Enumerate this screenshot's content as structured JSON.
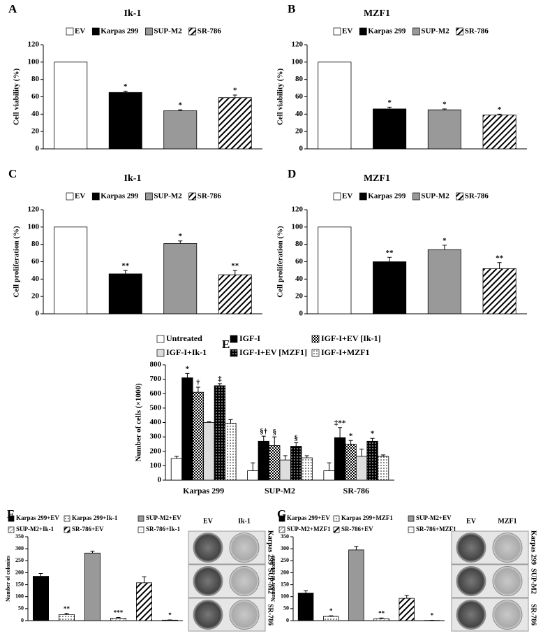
{
  "chart_data": [
    {
      "type": "bar",
      "panel": "A",
      "title": "Ik-1",
      "ylabel": "Cell viability (%)",
      "categories": [
        "EV",
        "Karpas 299",
        "SUP-M2",
        "SR-786"
      ],
      "fills": [
        "white",
        "black",
        "gray",
        "hatch"
      ],
      "values": [
        100,
        65,
        44,
        59
      ],
      "errors": [
        null,
        1.5,
        1,
        3
      ],
      "annotations": [
        null,
        "*",
        "*",
        "*"
      ],
      "ylim": [
        0,
        120
      ],
      "yticks": [
        0,
        20,
        40,
        60,
        80,
        100,
        120
      ]
    },
    {
      "type": "bar",
      "panel": "B",
      "title": "MZF1",
      "ylabel": "Cell viability (%)",
      "categories": [
        "EV",
        "Karpas 299",
        "SUP-M2",
        "SR-786"
      ],
      "fills": [
        "white",
        "black",
        "gray",
        "hatch"
      ],
      "values": [
        100,
        46,
        45,
        39
      ],
      "errors": [
        null,
        2,
        1,
        1
      ],
      "annotations": [
        null,
        "*",
        "*",
        "*"
      ],
      "ylim": [
        0,
        120
      ],
      "yticks": [
        0,
        20,
        40,
        60,
        80,
        100,
        120
      ]
    },
    {
      "type": "bar",
      "panel": "C",
      "title": "Ik-1",
      "ylabel": "Cell proliferation (%)",
      "categories": [
        "EV",
        "Karpas 299",
        "SUP-M2",
        "SR-786"
      ],
      "fills": [
        "white",
        "black",
        "gray",
        "hatch"
      ],
      "values": [
        100,
        46,
        81,
        45
      ],
      "errors": [
        null,
        4,
        3,
        5
      ],
      "annotations": [
        null,
        "**",
        "*",
        "**"
      ],
      "ylim": [
        0,
        120
      ],
      "yticks": [
        0,
        20,
        40,
        60,
        80,
        100,
        120
      ]
    },
    {
      "type": "bar",
      "panel": "D",
      "title": "MZF1",
      "ylabel": "Cell proliferation (%)",
      "categories": [
        "EV",
        "Karpas 299",
        "SUP-M2",
        "SR-786"
      ],
      "fills": [
        "white",
        "black",
        "gray",
        "hatch"
      ],
      "values": [
        100,
        60,
        74,
        52
      ],
      "errors": [
        null,
        5,
        5,
        7
      ],
      "annotations": [
        null,
        "**",
        "*",
        "**"
      ],
      "ylim": [
        0,
        120
      ],
      "yticks": [
        0,
        20,
        40,
        60,
        80,
        100,
        120
      ]
    },
    {
      "type": "grouped-bar",
      "panel": "E",
      "ylabel": "Number of cells (×1000)",
      "categories": [
        "Karpas 299",
        "SUP-M2",
        "SR-786"
      ],
      "series": [
        {
          "name": "Untreated",
          "fill": "white",
          "values": [
            150,
            65,
            65
          ],
          "errors": [
            15,
            55,
            55
          ],
          "annotations": [
            null,
            null,
            null
          ]
        },
        {
          "name": "IGF-I",
          "fill": "black",
          "values": [
            710,
            270,
            295
          ],
          "errors": [
            30,
            35,
            70
          ],
          "annotations": [
            "*",
            "§†",
            "‡**"
          ]
        },
        {
          "name": "IGF-I+EV [Ik-1]",
          "fill": "checker",
          "values": [
            610,
            240,
            250
          ],
          "errors": [
            35,
            60,
            25
          ],
          "annotations": [
            "†",
            "§",
            "*"
          ]
        },
        {
          "name": "IGF-I+Ik-1",
          "fill": "lightgray",
          "values": [
            400,
            140,
            165
          ],
          "errors": [
            5,
            30,
            50
          ],
          "annotations": [
            null,
            null,
            null
          ]
        },
        {
          "name": "IGF-I+EV [MZF1]",
          "fill": "blackdots",
          "values": [
            655,
            235,
            270
          ],
          "errors": [
            15,
            25,
            20
          ],
          "annotations": [
            "‡",
            "§",
            "*"
          ]
        },
        {
          "name": "IGF-I+MZF1",
          "fill": "dots",
          "values": [
            395,
            155,
            165
          ],
          "errors": [
            25,
            15,
            10
          ],
          "annotations": [
            null,
            null,
            null
          ]
        }
      ],
      "ylim": [
        0,
        800
      ],
      "yticks": [
        0,
        100,
        200,
        300,
        400,
        500,
        600,
        700,
        800
      ]
    },
    {
      "type": "bar",
      "panel": "F",
      "ylabel": "Number of colonies",
      "categories": [
        "Karpas 299+EV",
        "Karpas 299+Ik-1",
        "SUP-M2+EV",
        "SUP-M2+Ik-1",
        "SR-786+EV",
        "SR-786+Ik-1"
      ],
      "fills": [
        "black",
        "dots",
        "gray",
        "grayhatch",
        "hatch",
        "lightdots"
      ],
      "values": [
        185,
        25,
        282,
        10,
        158,
        2
      ],
      "errors": [
        12,
        5,
        8,
        3,
        25,
        1
      ],
      "annotations": [
        null,
        "**",
        null,
        "***",
        null,
        "*"
      ],
      "ylim": [
        0,
        350
      ],
      "yticks": [
        0,
        50,
        100,
        150,
        200,
        250,
        300,
        350
      ],
      "image_columns": [
        "EV",
        "Ik-1"
      ],
      "image_rows": [
        "Karpas 299",
        "SUP-M2",
        "SR-786"
      ]
    },
    {
      "type": "bar",
      "panel": "G",
      "ylabel": "Number of colonies",
      "categories": [
        "Karpas 299+EV",
        "Karpas 299+MZF1",
        "SUP-M2+EV",
        "SUP-M2+MZF1",
        "SR-786+EV",
        "SR-786+MZF1"
      ],
      "fills": [
        "black",
        "dots",
        "gray",
        "grayhatch",
        "hatch",
        "lightdots"
      ],
      "values": [
        115,
        18,
        295,
        8,
        93,
        1
      ],
      "errors": [
        10,
        2,
        15,
        3,
        12,
        0.5
      ],
      "annotations": [
        null,
        "*",
        null,
        "**",
        null,
        "*"
      ],
      "ylim": [
        0,
        350
      ],
      "yticks": [
        0,
        50,
        100,
        150,
        200,
        250,
        300,
        350
      ],
      "image_columns": [
        "EV",
        "MZF1"
      ],
      "image_rows": [
        "Karpas 299",
        "SUP-M2",
        "SR-786"
      ]
    }
  ]
}
